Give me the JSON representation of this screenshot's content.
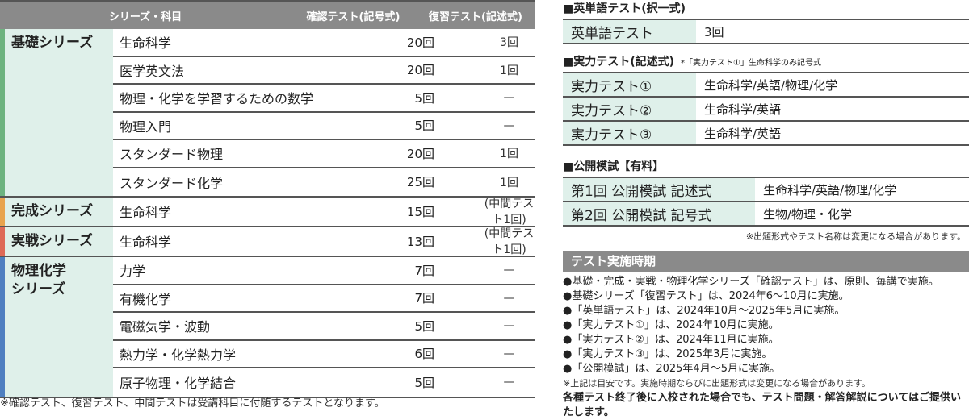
{
  "left_table": {
    "headers": [
      "シリーズ・科目",
      "確認テスト(記号式)",
      "復習テスト(記述式)"
    ],
    "groups": [
      {
        "series": "基礎シリーズ",
        "color": "#6db37f",
        "rows": [
          {
            "subject": "生命科学",
            "check": "20回",
            "review": "3回"
          },
          {
            "subject": "医学英文法",
            "check": "20回",
            "review": "1回"
          },
          {
            "subject": "物理・化学を学習するための数学",
            "check": "5回",
            "review": "—"
          },
          {
            "subject": "物理入門",
            "check": "5回",
            "review": "—"
          },
          {
            "subject": "スタンダード物理",
            "check": "20回",
            "review": "1回"
          },
          {
            "subject": "スタンダード化学",
            "check": "25回",
            "review": "1回"
          }
        ]
      },
      {
        "series": "完成シリーズ",
        "color": "#e8a34e",
        "rows": [
          {
            "subject": "生命科学",
            "check": "15回",
            "review": "(中間テスト1回)"
          }
        ]
      },
      {
        "series": "実戦シリーズ",
        "color": "#de6a58",
        "rows": [
          {
            "subject": "生命科学",
            "check": "13回",
            "review": "(中間テスト1回)"
          }
        ]
      },
      {
        "series": "物理化学シリーズ",
        "color": "#4f7fc0",
        "rows": [
          {
            "subject": "力学",
            "check": "7回",
            "review": "—"
          },
          {
            "subject": "有機化学",
            "check": "7回",
            "review": "—"
          },
          {
            "subject": "電磁気学・波動",
            "check": "5回",
            "review": "—"
          },
          {
            "subject": "熱力学・化学熱力学",
            "check": "6回",
            "review": "—"
          },
          {
            "subject": "原子物理・化学結合",
            "check": "5回",
            "review": "—"
          }
        ]
      }
    ],
    "note": "※確認テスト、復習テスト、中間テストは受講科目に付随するテストとなります。"
  },
  "vocab": {
    "heading": "■英単語テスト(択一式)",
    "rows": [
      {
        "k": "英単語テスト",
        "v": "3回"
      }
    ]
  },
  "ability": {
    "heading": "■実力テスト(記述式)",
    "sub": "*「実力テスト①」生命科学のみ記号式",
    "rows": [
      {
        "k": "実力テスト①",
        "v": "生命科学/英語/物理/化学"
      },
      {
        "k": "実力テスト②",
        "v": "生命科学/英語"
      },
      {
        "k": "実力テスト③",
        "v": "生命科学/英語"
      }
    ]
  },
  "mock": {
    "heading": "■公開模試【有料】",
    "rows": [
      {
        "k": "第1回 公開模試 記述式",
        "v": "生命科学/英語/物理/化学"
      },
      {
        "k": "第2回 公開模試 記号式",
        "v": "生物/物理・化学"
      }
    ],
    "note": "※出題形式やテスト名称は変更になる場合があります。"
  },
  "schedule": {
    "title": "テスト実施時期",
    "items": [
      "●基礎・完成・実戦・物理化学シリーズ「確認テスト」は、原則、毎講で実施。",
      "●基礎シリーズ「復習テスト」は、2024年6～10月に実施。",
      "●「英単語テスト」は、2024年10月～2025年5月に実施。",
      "●「実力テスト①」は、2024年10月に実施。",
      "●「実力テスト②」は、2024年11月に実施。",
      "●「実力テスト③」は、2025年3月に実施。",
      "●「公開模試」は、2025年4月～5月に実施。"
    ],
    "note": "※上記は目安です。実施時期ならびに出題形式は変更になる場合があります。",
    "footer": "各種テスト終了後に入校された場合でも、テスト問題・解答解説についてはご提供いたします。"
  }
}
